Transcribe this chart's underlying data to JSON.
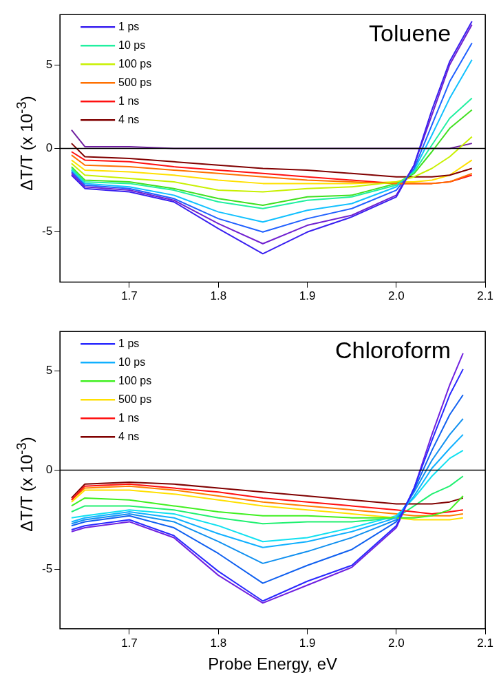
{
  "chart_data": [
    {
      "type": "line",
      "title": "Toluene",
      "ylabel": "ΔT/T (x 10$^{-3}$)",
      "x": [
        1.635,
        1.65,
        1.7,
        1.75,
        1.8,
        1.85,
        1.9,
        1.95,
        2.0,
        2.02,
        2.04,
        2.06,
        2.085
      ],
      "xlim": [
        1.622,
        2.1
      ],
      "xticks": [
        1.7,
        1.8,
        1.9,
        {
          "value": 2,
          "label": "2.0"
        },
        2.1
      ],
      "ylim": [
        -8,
        8
      ],
      "yticks": [
        -5,
        0,
        5
      ],
      "grid": false,
      "legend": "top left",
      "marker": "none",
      "line_style": "solid",
      "ref_lines": [
        {
          "axis": "y",
          "value": 0,
          "color": "#000000"
        }
      ],
      "series": [
        {
          "name": "1 ps",
          "color": "#3a20f0",
          "values": [
            -1.6,
            -2.4,
            -2.6,
            -3.2,
            -4.8,
            -6.3,
            -5.0,
            -4.1,
            -2.9,
            -1.0,
            2.3,
            5.2,
            7.6
          ]
        },
        {
          "name": "10 ps",
          "color": "#20f0a0",
          "values": [
            -1.2,
            -2.0,
            -2.1,
            -2.5,
            -3.2,
            -3.6,
            -3.1,
            -2.9,
            -2.2,
            -1.4,
            0.2,
            1.8,
            3.0
          ]
        },
        {
          "name": "100 ps",
          "color": "#c8f000",
          "values": [
            -0.9,
            -1.6,
            -1.8,
            -2.0,
            -2.5,
            -2.6,
            -2.4,
            -2.3,
            -2.0,
            -1.7,
            -1.2,
            -0.5,
            0.7
          ]
        },
        {
          "name": "500 ps",
          "color": "#ff7000",
          "values": [
            -0.4,
            -1.0,
            -1.1,
            -1.3,
            -1.5,
            -1.7,
            -1.9,
            -2.0,
            -2.1,
            -2.1,
            -2.1,
            -2.0,
            -1.5
          ]
        },
        {
          "name": "1 ns",
          "color": "#ff1010",
          "values": [
            -0.2,
            -0.7,
            -0.8,
            -1.1,
            -1.3,
            -1.5,
            -1.7,
            -1.9,
            -2.1,
            -2.1,
            -2.1,
            -2.0,
            -1.6
          ]
        },
        {
          "name": "4 ns",
          "color": "#800000",
          "values": [
            0.3,
            -0.5,
            -0.6,
            -0.8,
            -1.0,
            -1.2,
            -1.3,
            -1.5,
            -1.7,
            -1.7,
            -1.7,
            -1.6,
            -1.2
          ]
        },
        {
          "color": "#7020d0",
          "values": [
            -1.5,
            -2.3,
            -2.5,
            -3.1,
            -4.5,
            -5.7,
            -4.6,
            -4.0,
            -2.8,
            -1.0,
            2.0,
            5.0,
            7.4
          ]
        },
        {
          "color": "#2060ff",
          "values": [
            -1.4,
            -2.2,
            -2.4,
            -3.0,
            -4.2,
            -5.0,
            -4.2,
            -3.6,
            -2.5,
            -1.2,
            1.4,
            4.0,
            6.3
          ]
        },
        {
          "color": "#10c0ff",
          "values": [
            -1.3,
            -2.1,
            -2.3,
            -2.8,
            -3.8,
            -4.4,
            -3.7,
            -3.3,
            -2.3,
            -1.3,
            0.8,
            3.0,
            5.3
          ]
        },
        {
          "color": "#40e020",
          "values": [
            -1.1,
            -1.9,
            -2.0,
            -2.4,
            -3.0,
            -3.4,
            -2.9,
            -2.8,
            -2.1,
            -1.5,
            -0.2,
            1.2,
            2.3
          ]
        },
        {
          "color": "#ffe000",
          "values": [
            -0.7,
            -1.3,
            -1.4,
            -1.6,
            -1.9,
            -2.1,
            -2.1,
            -2.1,
            -2.0,
            -2.0,
            -1.9,
            -1.6,
            -0.7
          ]
        },
        {
          "color": "#7020a0",
          "values": [
            1.1,
            0.1,
            0.1,
            0.0,
            0.0,
            0.0,
            0.0,
            0.0,
            0.0,
            0.0,
            0.0,
            0.0,
            0.3
          ]
        }
      ]
    },
    {
      "type": "line",
      "title": "Chloroform",
      "xlabel": "Probe Energy, eV",
      "ylabel": "ΔT/T (x 10$^{-3}$)",
      "x": [
        1.635,
        1.65,
        1.7,
        1.75,
        1.8,
        1.85,
        1.9,
        1.95,
        2.0,
        2.02,
        2.04,
        2.06,
        2.075
      ],
      "xlim": [
        1.622,
        2.1
      ],
      "xticks": [
        1.7,
        1.8,
        1.9,
        {
          "value": 2,
          "label": "2.0"
        },
        2.1
      ],
      "ylim": [
        -8,
        7
      ],
      "yticks": [
        -5,
        0,
        5
      ],
      "grid": false,
      "legend": "top left",
      "marker": "none",
      "line_style": "solid",
      "ref_lines": [
        {
          "axis": "y",
          "value": 0,
          "color": "#000000"
        }
      ],
      "series": [
        {
          "name": "1 ps",
          "color": "#2828ff",
          "values": [
            -3.0,
            -2.8,
            -2.5,
            -3.3,
            -5.1,
            -6.6,
            -5.6,
            -4.8,
            -2.8,
            -0.9,
            1.5,
            3.8,
            5.1
          ]
        },
        {
          "name": "10 ps",
          "color": "#10b0ff",
          "values": [
            -2.6,
            -2.4,
            -2.1,
            -2.4,
            -3.2,
            -3.9,
            -3.6,
            -3.1,
            -2.4,
            -1.3,
            0.1,
            1.1,
            1.8
          ]
        },
        {
          "name": "100 ps",
          "color": "#40f020",
          "values": [
            -1.8,
            -1.4,
            -1.5,
            -1.8,
            -2.1,
            -2.3,
            -2.3,
            -2.4,
            -2.4,
            -2.4,
            -2.3,
            -2.0,
            -1.3
          ]
        },
        {
          "name": "500 ps",
          "color": "#ffe000",
          "values": [
            -1.6,
            -1.0,
            -1.0,
            -1.2,
            -1.5,
            -1.8,
            -2.0,
            -2.2,
            -2.4,
            -2.5,
            -2.5,
            -2.5,
            -2.4
          ]
        },
        {
          "name": "1 ns",
          "color": "#ff1010",
          "values": [
            -1.5,
            -0.8,
            -0.7,
            -0.9,
            -1.1,
            -1.4,
            -1.6,
            -1.8,
            -2.0,
            -2.1,
            -2.2,
            -2.1,
            -2.0
          ]
        },
        {
          "name": "4 ns",
          "color": "#800000",
          "values": [
            -1.4,
            -0.7,
            -0.6,
            -0.7,
            -0.9,
            -1.1,
            -1.3,
            -1.5,
            -1.7,
            -1.7,
            -1.7,
            -1.6,
            -1.4
          ]
        },
        {
          "color": "#7020e0",
          "values": [
            -3.1,
            -2.9,
            -2.6,
            -3.4,
            -5.3,
            -6.7,
            -5.8,
            -4.9,
            -2.9,
            -0.9,
            1.8,
            4.3,
            5.9
          ]
        },
        {
          "color": "#1060f0",
          "values": [
            -2.8,
            -2.6,
            -2.3,
            -2.9,
            -4.2,
            -5.7,
            -4.8,
            -4.0,
            -2.6,
            -1.0,
            1.0,
            2.8,
            3.8
          ]
        },
        {
          "color": "#1090f0",
          "values": [
            -2.7,
            -2.5,
            -2.2,
            -2.6,
            -3.6,
            -4.7,
            -4.1,
            -3.4,
            -2.5,
            -1.1,
            0.5,
            1.8,
            2.6
          ]
        },
        {
          "color": "#10e0f0",
          "values": [
            -2.4,
            -2.3,
            -2.0,
            -2.2,
            -2.8,
            -3.6,
            -3.4,
            -2.9,
            -2.3,
            -1.4,
            -0.3,
            0.6,
            1.0
          ]
        },
        {
          "color": "#20f070",
          "values": [
            -2.1,
            -1.8,
            -1.8,
            -2.0,
            -2.4,
            -2.7,
            -2.6,
            -2.6,
            -2.4,
            -1.8,
            -1.2,
            -0.8,
            -0.3
          ]
        },
        {
          "color": "#ff8000",
          "values": [
            -1.5,
            -0.9,
            -0.8,
            -1.0,
            -1.3,
            -1.6,
            -1.8,
            -2.0,
            -2.2,
            -2.3,
            -2.3,
            -2.3,
            -2.2
          ]
        }
      ]
    }
  ]
}
